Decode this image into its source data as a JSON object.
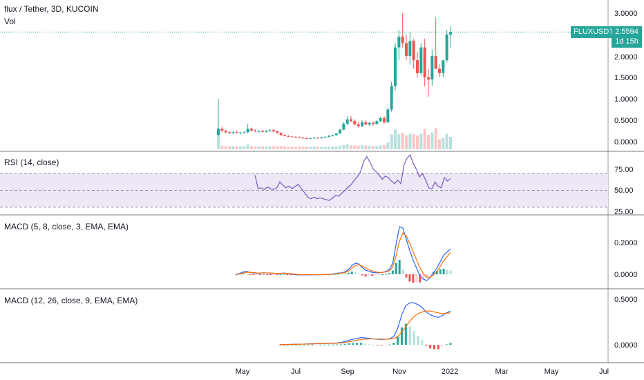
{
  "header": {
    "title": "flux / Tether, 3D, KUCOIN",
    "vol_label": "Vol"
  },
  "price_badge": {
    "symbol": "FLUXUSDT",
    "price": "2.5594",
    "countdown": "1d 15h"
  },
  "rsi": {
    "label": "RSI (14, close)"
  },
  "macd1": {
    "label": "MACD (5, 8, close, 3, EMA, EMA)"
  },
  "macd2": {
    "label": "MACD (12, 26, close, 9, EMA, EMA)"
  },
  "colors": {
    "up": "#26a69a",
    "down": "#ef5350",
    "macd_line": "#2962ff",
    "signal_line": "#ff6d00",
    "rsi_line": "#7e57c2",
    "rsi_band": "#ede7f6"
  },
  "chart_data": [
    {
      "type": "candlestick",
      "title": "flux / Tether, 3D, KUCOIN",
      "y_ticks": [
        "3.0000",
        "2.5000",
        "2.0000",
        "1.5000",
        "1.0000",
        "0.5000",
        "0.0000"
      ],
      "ylim": [
        0,
        3.1
      ],
      "x_ticks": [
        "May",
        "Jul",
        "Sep",
        "Nov",
        "2022",
        "Mar",
        "May",
        "Jul"
      ],
      "last_price": 2.5594,
      "series": [
        {
          "name": "price",
          "values": [
            [
              0.15,
              1.0,
              0.12,
              0.3
            ],
            [
              0.3,
              0.35,
              0.22,
              0.25
            ],
            [
              0.25,
              0.28,
              0.2,
              0.22
            ],
            [
              0.22,
              0.25,
              0.18,
              0.2
            ],
            [
              0.2,
              0.24,
              0.17,
              0.22
            ],
            [
              0.22,
              0.26,
              0.19,
              0.2
            ],
            [
              0.2,
              0.23,
              0.17,
              0.21
            ],
            [
              0.21,
              0.25,
              0.19,
              0.22
            ],
            [
              0.22,
              0.42,
              0.2,
              0.3
            ],
            [
              0.3,
              0.33,
              0.24,
              0.26
            ],
            [
              0.26,
              0.29,
              0.22,
              0.24
            ],
            [
              0.24,
              0.27,
              0.21,
              0.25
            ],
            [
              0.25,
              0.28,
              0.22,
              0.23
            ],
            [
              0.23,
              0.27,
              0.21,
              0.25
            ],
            [
              0.25,
              0.3,
              0.23,
              0.27
            ],
            [
              0.27,
              0.29,
              0.22,
              0.24
            ],
            [
              0.24,
              0.26,
              0.19,
              0.2
            ],
            [
              0.2,
              0.22,
              0.14,
              0.15
            ],
            [
              0.15,
              0.17,
              0.12,
              0.13
            ],
            [
              0.13,
              0.15,
              0.11,
              0.12
            ],
            [
              0.12,
              0.14,
              0.1,
              0.11
            ],
            [
              0.11,
              0.13,
              0.09,
              0.1
            ],
            [
              0.1,
              0.12,
              0.08,
              0.09
            ],
            [
              0.09,
              0.11,
              0.07,
              0.08
            ],
            [
              0.08,
              0.1,
              0.06,
              0.07
            ],
            [
              0.07,
              0.09,
              0.06,
              0.08
            ],
            [
              0.08,
              0.11,
              0.07,
              0.09
            ],
            [
              0.09,
              0.1,
              0.07,
              0.08
            ],
            [
              0.08,
              0.11,
              0.07,
              0.1
            ],
            [
              0.1,
              0.13,
              0.09,
              0.11
            ],
            [
              0.11,
              0.15,
              0.1,
              0.14
            ],
            [
              0.14,
              0.16,
              0.12,
              0.15
            ],
            [
              0.15,
              0.2,
              0.14,
              0.19
            ],
            [
              0.19,
              0.3,
              0.18,
              0.28
            ],
            [
              0.28,
              0.45,
              0.27,
              0.42
            ],
            [
              0.42,
              0.6,
              0.38,
              0.52
            ],
            [
              0.52,
              0.6,
              0.45,
              0.48
            ],
            [
              0.48,
              0.52,
              0.38,
              0.4
            ],
            [
              0.4,
              0.45,
              0.33,
              0.36
            ],
            [
              0.36,
              0.5,
              0.34,
              0.45
            ],
            [
              0.45,
              0.5,
              0.38,
              0.4
            ],
            [
              0.4,
              0.46,
              0.37,
              0.44
            ],
            [
              0.44,
              0.48,
              0.38,
              0.41
            ],
            [
              0.41,
              0.5,
              0.4,
              0.48
            ],
            [
              0.48,
              0.58,
              0.45,
              0.55
            ],
            [
              0.55,
              0.6,
              0.42,
              0.45
            ],
            [
              0.45,
              0.8,
              0.43,
              0.75
            ],
            [
              0.75,
              1.4,
              0.7,
              1.3
            ],
            [
              1.3,
              2.3,
              1.2,
              2.2
            ],
            [
              2.2,
              2.6,
              1.9,
              2.45
            ],
            [
              2.45,
              3.0,
              2.2,
              2.3
            ],
            [
              2.3,
              2.5,
              1.9,
              2.0
            ],
            [
              2.0,
              2.55,
              1.8,
              2.35
            ],
            [
              2.35,
              2.4,
              1.7,
              1.9
            ],
            [
              1.9,
              2.1,
              1.5,
              1.6
            ],
            [
              1.6,
              2.3,
              1.55,
              2.2
            ],
            [
              2.2,
              2.4,
              1.3,
              1.5
            ],
            [
              1.5,
              1.7,
              1.05,
              1.45
            ],
            [
              1.45,
              2.15,
              1.3,
              2.0
            ],
            [
              2.0,
              2.9,
              1.7,
              1.7
            ],
            [
              1.7,
              1.8,
              1.5,
              1.6
            ],
            [
              1.6,
              1.9,
              1.5,
              1.9
            ],
            [
              1.9,
              2.6,
              1.85,
              2.5
            ],
            [
              2.5,
              2.7,
              2.2,
              2.56
            ]
          ]
        }
      ]
    },
    {
      "type": "line",
      "title": "RSI (14, close)",
      "y_ticks": [
        "75.00",
        "50.00",
        "25.00"
      ],
      "ylim": [
        23,
        97
      ],
      "band": [
        30,
        70
      ],
      "series": [
        {
          "name": "RSI",
          "values": [
            68,
            52,
            53,
            51,
            54,
            52,
            51,
            53,
            60,
            56,
            53,
            55,
            52,
            55,
            57,
            52,
            47,
            42,
            40,
            42,
            40,
            41,
            40,
            39,
            38,
            41,
            44,
            43,
            47,
            50,
            54,
            57,
            62,
            66,
            72,
            84,
            90,
            84,
            76,
            72,
            68,
            63,
            67,
            65,
            61,
            58,
            62,
            58,
            80,
            88,
            92,
            82,
            75,
            66,
            70,
            62,
            53,
            52,
            60,
            55,
            53,
            65,
            61,
            64
          ]
        }
      ]
    },
    {
      "type": "macd",
      "title": "MACD (5, 8, close, 3, EMA, EMA)",
      "y_ticks": [
        "0.2000",
        "0.0000"
      ],
      "ylim": [
        -0.05,
        0.33
      ],
      "series": [
        {
          "name": "MACD",
          "values": [
            0,
            0.005,
            0.015,
            0.018,
            0.012,
            0.008,
            0.007,
            0.006,
            0.01,
            0.008,
            0.006,
            0.006,
            0.005,
            0.006,
            0.008,
            0.005,
            0.002,
            -0.002,
            -0.004,
            -0.004,
            -0.004,
            -0.004,
            -0.003,
            -0.003,
            -0.003,
            -0.002,
            -0.001,
            0,
            0.002,
            0.004,
            0.008,
            0.01,
            0.015,
            0.03,
            0.055,
            0.07,
            0.065,
            0.045,
            0.025,
            0.02,
            0.012,
            0.01,
            0.009,
            0.012,
            0.018,
            0.03,
            0.07,
            0.19,
            0.3,
            0.29,
            0.22,
            0.15,
            0.09,
            0.04,
            -0.01,
            -0.03,
            -0.04,
            -0.02,
            0.01,
            0.04,
            0.08,
            0.12,
            0.14,
            0.16
          ]
        },
        {
          "name": "Signal",
          "values": [
            0,
            0.002,
            0.008,
            0.013,
            0.013,
            0.011,
            0.009,
            0.008,
            0.009,
            0.009,
            0.008,
            0.007,
            0.006,
            0.006,
            0.007,
            0.006,
            0.004,
            0.001,
            -0.001,
            -0.003,
            -0.003,
            -0.003,
            -0.003,
            -0.003,
            -0.003,
            -0.003,
            -0.002,
            -0.001,
            0,
            0.002,
            0.005,
            0.008,
            0.011,
            0.02,
            0.038,
            0.054,
            0.06,
            0.052,
            0.039,
            0.029,
            0.021,
            0.015,
            0.012,
            0.012,
            0.015,
            0.022,
            0.046,
            0.118,
            0.209,
            0.26,
            0.24,
            0.195,
            0.143,
            0.091,
            0.041,
            0.005,
            -0.018,
            -0.019,
            -0.004,
            0.018,
            0.049,
            0.085,
            0.112,
            0.136
          ]
        }
      ]
    },
    {
      "type": "macd",
      "title": "MACD (12, 26, close, 9, EMA, EMA)",
      "y_ticks": [
        "0.5000",
        "0.0000"
      ],
      "ylim": [
        -0.12,
        0.58
      ],
      "series": [
        {
          "name": "MACD",
          "values": [
            0.002,
            0.003,
            0.004,
            0.005,
            0.006,
            0.007,
            0.008,
            0.01,
            0.012,
            0.013,
            0.014,
            0.015,
            0.016,
            0.018,
            0.02,
            0.025,
            0.035,
            0.05,
            0.06,
            0.07,
            0.08,
            0.075,
            0.07,
            0.065,
            0.06,
            0.058,
            0.06,
            0.065,
            0.09,
            0.18,
            0.33,
            0.43,
            0.46,
            0.46,
            0.44,
            0.41,
            0.36,
            0.33,
            0.31,
            0.3,
            0.32,
            0.35,
            0.37
          ]
        },
        {
          "name": "Signal",
          "values": [
            0.001,
            0.002,
            0.003,
            0.004,
            0.005,
            0.006,
            0.007,
            0.008,
            0.009,
            0.011,
            0.012,
            0.013,
            0.014,
            0.015,
            0.017,
            0.02,
            0.025,
            0.033,
            0.042,
            0.05,
            0.058,
            0.062,
            0.064,
            0.064,
            0.063,
            0.062,
            0.061,
            0.062,
            0.068,
            0.09,
            0.14,
            0.2,
            0.26,
            0.31,
            0.34,
            0.36,
            0.37,
            0.37,
            0.36,
            0.35,
            0.34,
            0.345,
            0.35
          ]
        }
      ]
    }
  ]
}
